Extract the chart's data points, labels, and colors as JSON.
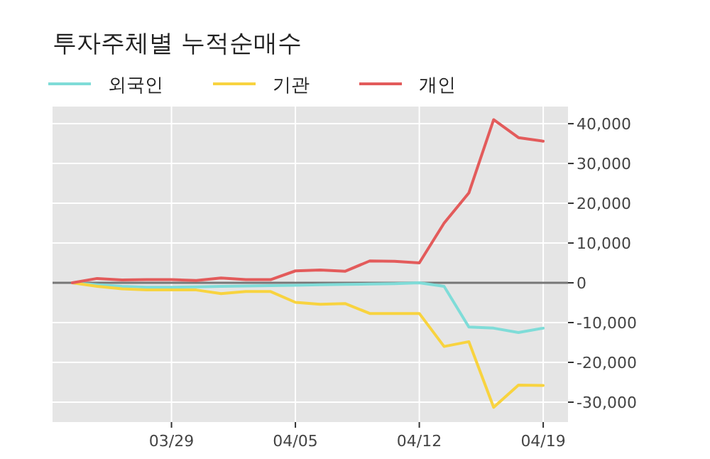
{
  "chart_data": {
    "type": "line",
    "title": "투자주체별 누적순매수",
    "categories": [
      null,
      null,
      null,
      null,
      "03/29",
      null,
      null,
      null,
      null,
      "04/05",
      null,
      null,
      null,
      null,
      "04/12",
      null,
      null,
      null,
      null,
      "04/19"
    ],
    "series": [
      {
        "name": "외국인",
        "color": "#7fdcd8",
        "values": [
          0,
          -500,
          -900,
          -1100,
          -1100,
          -1000,
          -900,
          -800,
          -700,
          -600,
          -500,
          -400,
          -300,
          -200,
          0,
          -900,
          -11100,
          -11400,
          -12500,
          -11400
        ]
      },
      {
        "name": "기관",
        "color": "#f8d33f",
        "values": [
          0,
          -900,
          -1500,
          -1800,
          -1800,
          -1800,
          -2700,
          -2200,
          -2200,
          -4900,
          -5400,
          -5200,
          -7700,
          -7700,
          -7700,
          -16000,
          -14800,
          -31300,
          -25700,
          -25800
        ]
      },
      {
        "name": "개인",
        "color": "#e35b5b",
        "values": [
          0,
          1100,
          700,
          800,
          800,
          600,
          1200,
          800,
          800,
          3000,
          3200,
          2900,
          5500,
          5400,
          5000,
          15000,
          22600,
          41000,
          36500,
          35600
        ]
      }
    ],
    "ylim": [
      -35000,
      44300
    ],
    "yticks": [
      {
        "value": -30000,
        "label": "-30,000"
      },
      {
        "value": -20000,
        "label": "-20,000"
      },
      {
        "value": -10000,
        "label": "-10,000"
      },
      0,
      {
        "value": 10000,
        "label": "10,000"
      },
      {
        "value": 20000,
        "label": "20,000"
      },
      {
        "value": 30000,
        "label": "30,000"
      },
      {
        "value": 40000,
        "label": "40,000"
      }
    ],
    "ref_lines": [
      {
        "axis": "y",
        "value": 0,
        "color": "#777777"
      }
    ],
    "grid": true,
    "legend": "top left",
    "marker": "none",
    "line_style": "solid"
  }
}
